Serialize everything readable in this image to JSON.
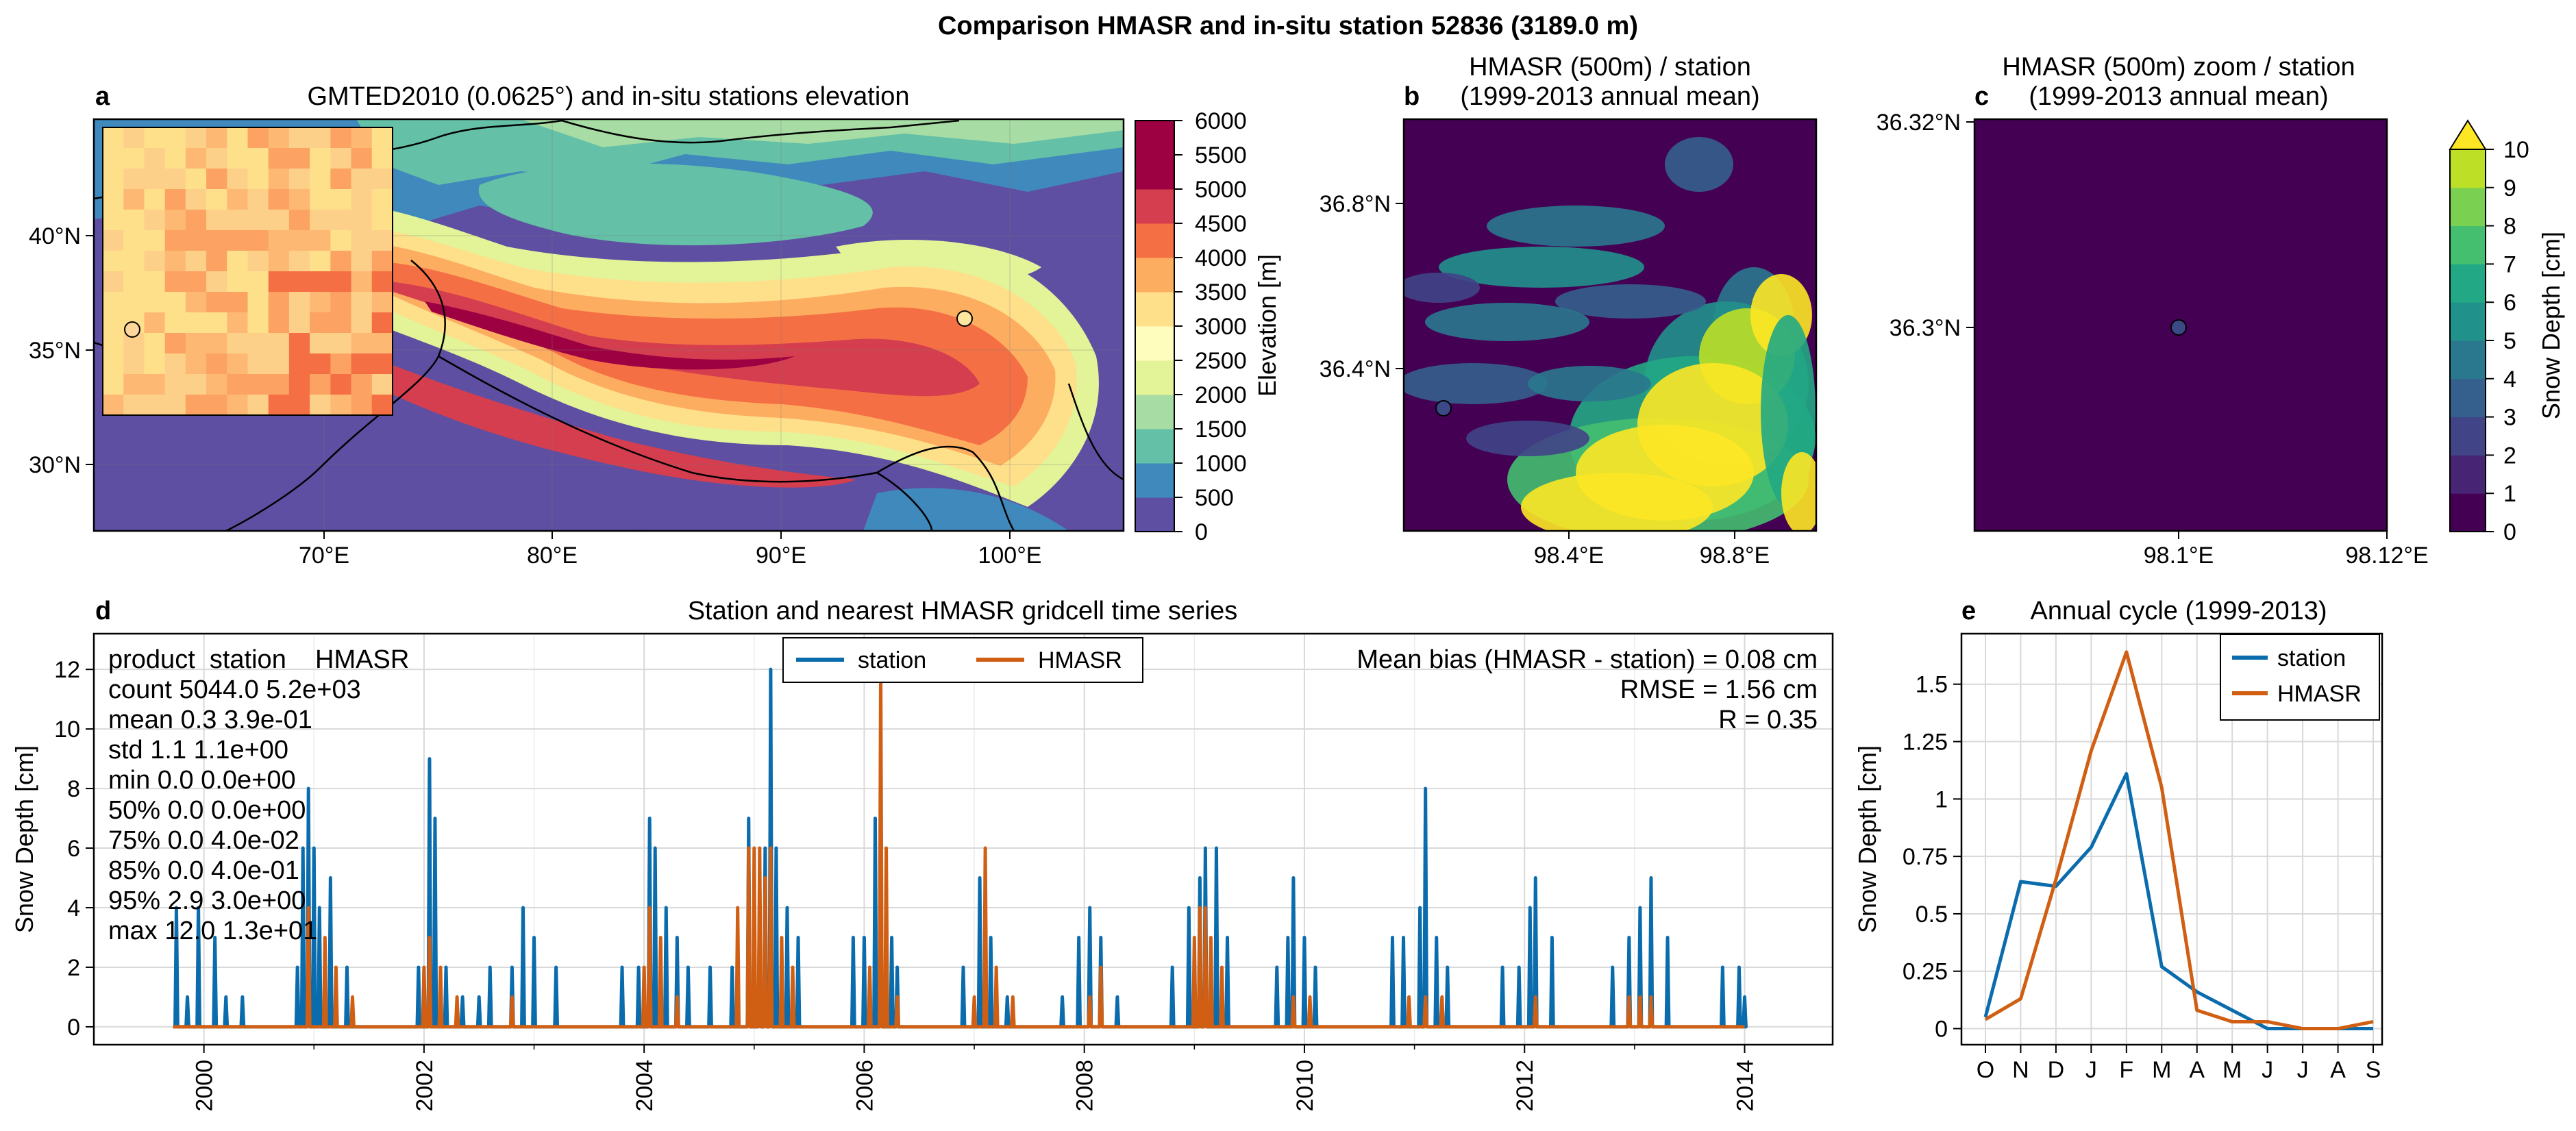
{
  "suptitle": "Comparison HMASR and in-situ station 52836 (3189.0 m)",
  "panel_a": {
    "label": "a",
    "title": "GMTED2010 (0.0625°) and in-situ stations elevation",
    "lon_ticks": [
      "70°E",
      "80°E",
      "90°E",
      "100°E"
    ],
    "lat_ticks": [
      "40°N",
      "35°N",
      "30°N"
    ],
    "colorbar_label": "Elevation [m]",
    "colorbar_ticks": [
      "6000",
      "5500",
      "5000",
      "4500",
      "4000",
      "3500",
      "3000",
      "2500",
      "2000",
      "1500",
      "1000",
      "500",
      "0"
    ],
    "colorbar_colors": [
      "#5e4fa2",
      "#3f89bd",
      "#64c0a6",
      "#a7dca4",
      "#e2f398",
      "#fefdbd",
      "#fee08b",
      "#fdad60",
      "#f47044",
      "#d53e4f",
      "#9e0142",
      "#9e0142"
    ]
  },
  "panel_b": {
    "label": "b",
    "title_line1": "HMASR (500m) / station",
    "title_line2": "(1999-2013 annual mean)",
    "lon_ticks": [
      "98.4°E",
      "98.8°E"
    ],
    "lat_ticks": [
      "36.8°N",
      "36.4°N"
    ]
  },
  "panel_c": {
    "label": "c",
    "title_line1": "HMASR (500m) zoom / station",
    "title_line2": "(1999-2013 annual mean)",
    "lon_ticks": [
      "98.1°E",
      "98.12°E"
    ],
    "lat_ticks": [
      "36.32°N",
      "36.3°N"
    ],
    "colorbar_label": "Snow Depth [cm]",
    "colorbar_ticks": [
      "10",
      "9",
      "8",
      "7",
      "6",
      "5",
      "4",
      "3",
      "2",
      "1",
      "0"
    ],
    "colorbar_colors": [
      "#440154",
      "#482475",
      "#414487",
      "#355f8d",
      "#2a788e",
      "#21918c",
      "#22a884",
      "#44bf70",
      "#7ad151",
      "#bddf26"
    ],
    "colorbar_extend_color": "#fde725"
  },
  "panel_d": {
    "label": "d",
    "title": "Station and nearest HMASR gridcell time series",
    "ylabel": "Snow Depth [cm]",
    "stats_header": "product  station    HMASR",
    "stats_rows": [
      "count     5044.0  5.2e+03",
      "mean           0.3  3.9e-01",
      "std            1.1  1.1e+00",
      "min            0.0  0.0e+00",
      "50%            0.0  0.0e+00",
      "75%            0.0  4.0e-02",
      "85%            0.0  4.0e-01",
      "95%            2.9  3.0e+00",
      "max          12.0  1.3e+01"
    ],
    "bias_line": "Mean bias (HMASR - station) = 0.08 cm",
    "rmse_line": "RMSE = 1.56 cm",
    "r_line": "R = 0.35"
  },
  "panel_e": {
    "label": "e",
    "title": "Annual cycle (1999-2013)",
    "ylabel": "Snow Depth [cm]"
  },
  "legend": {
    "station": "station",
    "hmasr": "HMASR"
  },
  "colors": {
    "station": "#0a6cad",
    "hmasr": "#d05f13"
  },
  "chart_data": [
    {
      "type": "line",
      "panel": "d",
      "xlabel": "",
      "ylabel": "Snow Depth [cm]",
      "x_ticks": [
        "2000",
        "2002",
        "2004",
        "2006",
        "2008",
        "2010",
        "2012",
        "2014"
      ],
      "xlim": [
        1999.0,
        2014.8
      ],
      "ylim": [
        -0.6,
        13.2
      ],
      "y_ticks": [
        0,
        2,
        4,
        6,
        8,
        10,
        12
      ],
      "grid": true,
      "legend_position": "top-center",
      "series": [
        {
          "name": "station",
          "peaks": [
            [
              1999.75,
              4
            ],
            [
              1999.85,
              1
            ],
            [
              1999.95,
              4
            ],
            [
              2000.1,
              3
            ],
            [
              2000.2,
              1
            ],
            [
              2000.35,
              1
            ],
            [
              2000.85,
              2
            ],
            [
              2000.9,
              6
            ],
            [
              2000.95,
              8
            ],
            [
              2001.0,
              6
            ],
            [
              2001.05,
              4
            ],
            [
              2001.15,
              5
            ],
            [
              2001.3,
              2
            ],
            [
              2001.95,
              2
            ],
            [
              2002.05,
              9
            ],
            [
              2002.1,
              7
            ],
            [
              2002.2,
              2
            ],
            [
              2002.35,
              1
            ],
            [
              2002.5,
              1
            ],
            [
              2002.6,
              2
            ],
            [
              2002.8,
              2
            ],
            [
              2002.9,
              4
            ],
            [
              2003.0,
              3
            ],
            [
              2003.2,
              2
            ],
            [
              2003.8,
              2
            ],
            [
              2003.95,
              2
            ],
            [
              2004.05,
              7
            ],
            [
              2004.1,
              6
            ],
            [
              2004.2,
              4
            ],
            [
              2004.3,
              3
            ],
            [
              2004.4,
              2
            ],
            [
              2004.6,
              2
            ],
            [
              2004.8,
              2
            ],
            [
              2004.95,
              7
            ],
            [
              2005.05,
              5
            ],
            [
              2005.1,
              6
            ],
            [
              2005.15,
              12
            ],
            [
              2005.2,
              6
            ],
            [
              2005.3,
              4
            ],
            [
              2005.4,
              3
            ],
            [
              2005.9,
              3
            ],
            [
              2006.0,
              3
            ],
            [
              2006.1,
              7
            ],
            [
              2006.15,
              6
            ],
            [
              2006.25,
              3
            ],
            [
              2006.3,
              2
            ],
            [
              2006.9,
              2
            ],
            [
              2007.05,
              5
            ],
            [
              2007.15,
              3
            ],
            [
              2007.3,
              1
            ],
            [
              2007.8,
              1
            ],
            [
              2007.95,
              3
            ],
            [
              2008.05,
              4
            ],
            [
              2008.15,
              3
            ],
            [
              2008.3,
              1
            ],
            [
              2008.8,
              2
            ],
            [
              2008.95,
              4
            ],
            [
              2009.05,
              5
            ],
            [
              2009.1,
              6
            ],
            [
              2009.2,
              6
            ],
            [
              2009.3,
              3
            ],
            [
              2009.75,
              2
            ],
            [
              2009.85,
              3
            ],
            [
              2009.9,
              5
            ],
            [
              2010.0,
              3
            ],
            [
              2010.1,
              2
            ],
            [
              2010.8,
              3
            ],
            [
              2010.9,
              3
            ],
            [
              2011.05,
              4
            ],
            [
              2011.1,
              8
            ],
            [
              2011.2,
              3
            ],
            [
              2011.3,
              2
            ],
            [
              2011.8,
              2
            ],
            [
              2011.95,
              2
            ],
            [
              2012.05,
              4
            ],
            [
              2012.1,
              5
            ],
            [
              2012.25,
              3
            ],
            [
              2012.8,
              2
            ],
            [
              2012.95,
              3
            ],
            [
              2013.05,
              4
            ],
            [
              2013.15,
              5
            ],
            [
              2013.3,
              3
            ],
            [
              2013.8,
              2
            ],
            [
              2013.95,
              2
            ],
            [
              2014.0,
              1
            ]
          ]
        },
        {
          "name": "HMASR",
          "peaks": [
            [
              2000.95,
              4
            ],
            [
              2001.1,
              3
            ],
            [
              2001.2,
              2
            ],
            [
              2001.35,
              1
            ],
            [
              2002.0,
              2
            ],
            [
              2002.05,
              3
            ],
            [
              2002.15,
              2
            ],
            [
              2002.3,
              1
            ],
            [
              2002.8,
              1
            ],
            [
              2004.0,
              2
            ],
            [
              2004.05,
              4
            ],
            [
              2004.15,
              3
            ],
            [
              2004.3,
              1
            ],
            [
              2004.85,
              4
            ],
            [
              2004.95,
              6
            ],
            [
              2005.0,
              6
            ],
            [
              2005.05,
              6
            ],
            [
              2005.1,
              5
            ],
            [
              2005.15,
              6
            ],
            [
              2005.25,
              3
            ],
            [
              2005.35,
              2
            ],
            [
              2006.05,
              2
            ],
            [
              2006.15,
              12
            ],
            [
              2006.2,
              6
            ],
            [
              2006.3,
              1
            ],
            [
              2007.0,
              1
            ],
            [
              2007.1,
              6
            ],
            [
              2007.2,
              2
            ],
            [
              2007.35,
              1
            ],
            [
              2008.05,
              1
            ],
            [
              2008.15,
              2
            ],
            [
              2009.0,
              3
            ],
            [
              2009.05,
              4
            ],
            [
              2009.1,
              4
            ],
            [
              2009.15,
              3
            ],
            [
              2009.25,
              2
            ],
            [
              2009.9,
              1
            ],
            [
              2010.05,
              1
            ],
            [
              2010.95,
              1
            ],
            [
              2011.1,
              1
            ],
            [
              2011.25,
              1
            ],
            [
              2012.1,
              1
            ],
            [
              2012.95,
              1
            ],
            [
              2013.05,
              1
            ],
            [
              2013.15,
              1
            ]
          ]
        }
      ]
    },
    {
      "type": "line",
      "panel": "e",
      "xlabel": "",
      "ylabel": "Snow Depth [cm]",
      "categories": [
        "O",
        "N",
        "D",
        "J",
        "F",
        "M",
        "A",
        "M",
        "J",
        "J",
        "A",
        "S"
      ],
      "ylim": [
        -0.07,
        1.72
      ],
      "y_ticks": [
        0,
        0.25,
        0.5,
        0.75,
        1,
        1.25,
        1.5
      ],
      "y_tick_labels": [
        "0",
        "0.25",
        "0.5",
        "0.75",
        "1",
        "1.25",
        "1.5"
      ],
      "grid": true,
      "legend_position": "top-right",
      "series": [
        {
          "name": "station",
          "values": [
            0.05,
            0.64,
            0.62,
            0.79,
            1.11,
            0.27,
            0.16,
            0.08,
            0.0,
            0.0,
            0.0,
            0.0
          ]
        },
        {
          "name": "HMASR",
          "values": [
            0.04,
            0.13,
            0.65,
            1.21,
            1.64,
            1.05,
            0.08,
            0.03,
            0.03,
            0.0,
            0.0,
            0.03
          ]
        }
      ]
    }
  ]
}
